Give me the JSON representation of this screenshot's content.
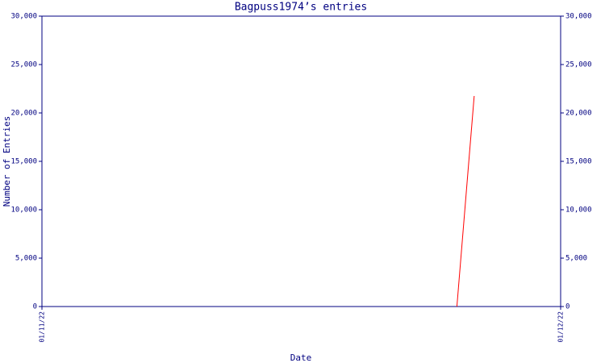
{
  "chart_data": {
    "type": "line",
    "title": "Bagpuss1974’s entries",
    "x_label": "Date",
    "y_label": "Number of Entries",
    "x": [
      "25/11/22",
      "26/11/22"
    ],
    "series": [
      {
        "name": "entries",
        "color": "#ff0000",
        "values": [
          0,
          21750
        ]
      }
    ],
    "xlim": [
      "01/11/22",
      "01/12/22"
    ],
    "xticks": [
      "01/11/22",
      "01/12/22"
    ],
    "ylim": [
      0,
      30000
    ],
    "yticks": [
      0,
      {
        "value": 5000,
        "label": "5,000"
      },
      {
        "value": 10000,
        "label": "10,000"
      },
      {
        "value": 15000,
        "label": "15,000"
      },
      {
        "value": 20000,
        "label": "20,000"
      },
      {
        "value": 25000,
        "label": "25,000"
      },
      {
        "value": 30000,
        "label": "30,000"
      }
    ],
    "axis_color": "#000080"
  }
}
